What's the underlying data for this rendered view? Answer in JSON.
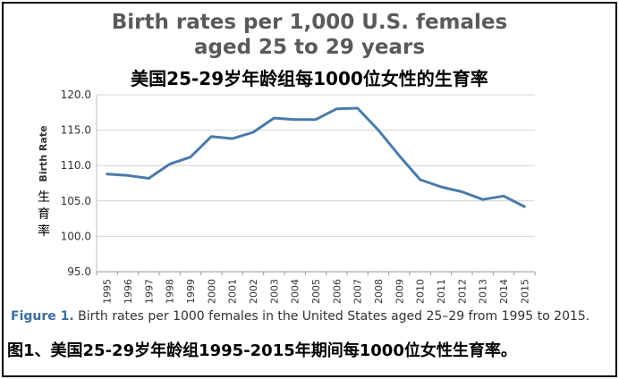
{
  "chart_data": {
    "type": "line",
    "title_line1": "Birth rates per 1,000 U.S. females",
    "title_line2": "aged 25 to 29 years",
    "title_cn": "美国25-29岁年龄组每1000位女性的生育率",
    "ylabel": "Birth Rate",
    "ylabel_cn": "生育率",
    "xlabel": "",
    "ylim": [
      95.0,
      120.0
    ],
    "yticks": [
      "95.0",
      "100.0",
      "105.0",
      "110.0",
      "115.0",
      "120.0"
    ],
    "categories": [
      "1995",
      "1996",
      "1997",
      "1998",
      "1999",
      "2000",
      "2001",
      "2002",
      "2003",
      "2004",
      "2005",
      "2006",
      "2007",
      "2008",
      "2009",
      "2010",
      "2011",
      "2012",
      "2013",
      "2014",
      "2015"
    ],
    "series": [
      {
        "name": "Birth rate",
        "values": [
          108.8,
          108.6,
          108.2,
          110.2,
          111.2,
          114.1,
          113.8,
          114.7,
          116.7,
          116.5,
          116.5,
          118.0,
          118.1,
          115.0,
          111.4,
          108.0,
          107.0,
          106.3,
          105.2,
          105.7,
          104.2
        ]
      }
    ],
    "grid": true,
    "line_color": "#4a7baa"
  },
  "caption_en": {
    "label": "Figure 1.",
    "text": " Birth rates per 1000 females in the United States aged 25–29 from 1995 to 2015."
  },
  "caption_cn": "图1、美国25-29岁年龄组1995-2015年期间每1000位女性生育率。"
}
